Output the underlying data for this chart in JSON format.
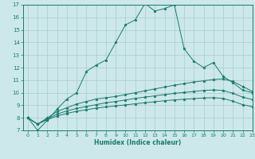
{
  "title": "",
  "xlabel": "Humidex (Indice chaleur)",
  "ylabel": "",
  "xlim": [
    -0.5,
    23
  ],
  "ylim": [
    7,
    17
  ],
  "yticks": [
    7,
    8,
    9,
    10,
    11,
    12,
    13,
    14,
    15,
    16,
    17
  ],
  "xticks": [
    0,
    1,
    2,
    3,
    4,
    5,
    6,
    7,
    8,
    9,
    10,
    11,
    12,
    13,
    14,
    15,
    16,
    17,
    18,
    19,
    20,
    21,
    22,
    23
  ],
  "background_color": "#cce8ea",
  "grid_color": "#aacccc",
  "line_color": "#1a7a6e",
  "line1_y": [
    8.0,
    7.0,
    7.8,
    8.7,
    9.5,
    10.0,
    11.7,
    12.2,
    12.6,
    14.0,
    15.4,
    15.8,
    17.1,
    16.5,
    16.7,
    17.0,
    13.5,
    12.5,
    12.0,
    12.4,
    11.3,
    10.8,
    10.2,
    10.0
  ],
  "line2_y": [
    8.0,
    7.5,
    8.0,
    8.5,
    8.8,
    9.1,
    9.3,
    9.5,
    9.6,
    9.7,
    9.85,
    10.0,
    10.15,
    10.3,
    10.45,
    10.6,
    10.72,
    10.85,
    10.95,
    11.05,
    11.1,
    10.9,
    10.5,
    10.1
  ],
  "line3_y": [
    8.0,
    7.5,
    7.9,
    8.3,
    8.55,
    8.75,
    8.9,
    9.05,
    9.2,
    9.3,
    9.42,
    9.55,
    9.65,
    9.75,
    9.85,
    9.95,
    10.02,
    10.1,
    10.18,
    10.22,
    10.18,
    9.95,
    9.65,
    9.45
  ],
  "line4_y": [
    8.0,
    7.5,
    7.85,
    8.15,
    8.35,
    8.52,
    8.65,
    8.77,
    8.87,
    8.95,
    9.03,
    9.12,
    9.2,
    9.28,
    9.36,
    9.43,
    9.48,
    9.53,
    9.58,
    9.6,
    9.55,
    9.32,
    9.05,
    8.88
  ]
}
